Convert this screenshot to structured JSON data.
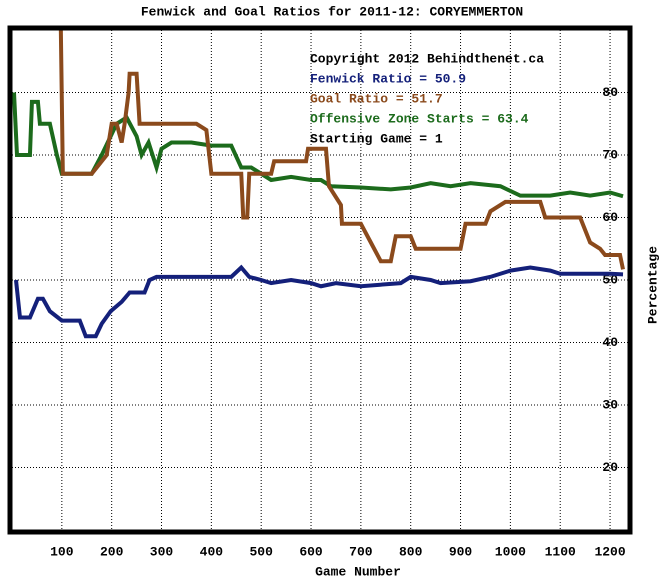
{
  "chart_data": {
    "type": "line",
    "title": "Fenwick and Goal Ratios for 2011-12: CORYEMMERTON",
    "x_label": "Game Number",
    "y_label": "Percentage",
    "xlim": [
      0,
      1236
    ],
    "ylim": [
      10,
      90
    ],
    "xticks": [
      100,
      200,
      300,
      400,
      500,
      600,
      700,
      800,
      900,
      1000,
      1100,
      1200
    ],
    "yticks": [
      20,
      30,
      40,
      50,
      60,
      70,
      80
    ],
    "grid": true,
    "annotations": [
      {
        "text": "Copyright 2012 Behindthenet.ca",
        "color": "#000000"
      },
      {
        "text": "Fenwick Ratio = 50.9",
        "color": "#14207a"
      },
      {
        "text": "Goal Ratio = 51.7",
        "color": "#8b4a1c"
      },
      {
        "text": "Offensive Zone Starts = 63.4",
        "color": "#1c6b1c"
      },
      {
        "text": "Starting Game = 1",
        "color": "#000000"
      }
    ],
    "series": [
      {
        "color": "#14207a",
        "x": [
          8,
          16,
          36,
          52,
          62,
          76,
          100,
          136,
          148,
          168,
          180,
          198,
          220,
          236,
          266,
          276,
          290,
          390,
          440,
          460,
          476,
          500,
          520,
          560,
          600,
          620,
          650,
          700,
          780,
          800,
          840,
          860,
          920,
          960,
          1000,
          1040,
          1080,
          1100,
          1200,
          1226
        ],
        "values": [
          50,
          44,
          44,
          47,
          47,
          45,
          43.5,
          43.5,
          41,
          41,
          43,
          45,
          46.5,
          48,
          48,
          50,
          50.5,
          50.5,
          50.5,
          52,
          50.5,
          50,
          49.5,
          50,
          49.5,
          49,
          49.5,
          49,
          49.5,
          50.5,
          50,
          49.5,
          49.8,
          50.5,
          51.5,
          52,
          51.5,
          51,
          51,
          50.9
        ]
      },
      {
        "color": "#1c6b1c",
        "x": [
          4,
          10,
          36,
          40,
          52,
          56,
          76,
          90,
          100,
          160,
          180,
          192,
          210,
          230,
          250,
          260,
          274,
          290,
          300,
          320,
          360,
          400,
          440,
          460,
          480,
          500,
          520,
          560,
          600,
          620,
          640,
          700,
          760,
          800,
          840,
          880,
          920,
          980,
          1020,
          1080,
          1120,
          1160,
          1200,
          1226
        ],
        "values": [
          80,
          70,
          70,
          78.5,
          78.5,
          75,
          75,
          70,
          67,
          67,
          70,
          72,
          75,
          76,
          73,
          70,
          72,
          68,
          71,
          72,
          72,
          71.5,
          71.5,
          68,
          68,
          67,
          66,
          66.5,
          66,
          66,
          65,
          64.8,
          64.5,
          64.8,
          65.5,
          65,
          65.5,
          65,
          63.5,
          63.5,
          64,
          63.5,
          64,
          63.4
        ]
      },
      {
        "color": "#8b4a1c",
        "x": [
          98,
          102,
          160,
          190,
          200,
          210,
          220,
          226,
          234,
          236,
          250,
          256,
          300,
          370,
          390,
          400,
          460,
          464,
          472,
          476,
          520,
          526,
          590,
          594,
          630,
          636,
          660,
          662,
          700,
          720,
          740,
          760,
          770,
          800,
          810,
          900,
          910,
          950,
          960,
          990,
          1060,
          1070,
          1140,
          1160,
          1180,
          1190,
          1220,
          1226
        ],
        "values": [
          90,
          67,
          67,
          70,
          75,
          75,
          72,
          75,
          80,
          83,
          83,
          75,
          75,
          75,
          74,
          67,
          67,
          60,
          60,
          67,
          67,
          69,
          69,
          71,
          71,
          65,
          62,
          59,
          59,
          56,
          53,
          53,
          57,
          57,
          55,
          55,
          59,
          59,
          61,
          62.5,
          62.5,
          60,
          60,
          56,
          55,
          54,
          54,
          51.7
        ]
      }
    ]
  }
}
